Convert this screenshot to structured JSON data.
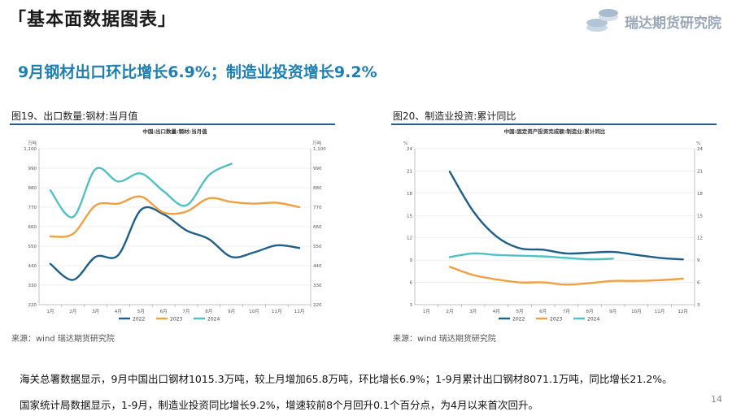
{
  "header": {
    "title": "「基本面数据图表」"
  },
  "logo": {
    "text": "瑞达期货研究院",
    "accent": "#9ab0c8"
  },
  "headline": "9月钢材出口环比增长6.9%；制造业投资增长9.2%",
  "figures": [
    {
      "caption": "图19、出口数量:钢材:当月值",
      "source": "来源：wind   瑞达期货研究院"
    },
    {
      "caption": "图20、制造业投资:累计同比",
      "source": "来源：wind   瑞达期货研究院"
    }
  ],
  "chart_data": [
    {
      "type": "line",
      "title": "中国:出口数量:钢材:当月值",
      "unit_left": "万吨",
      "unit_right": "万吨",
      "categories": [
        "1月",
        "2月",
        "3月",
        "4月",
        "5月",
        "6月",
        "7月",
        "8月",
        "9月",
        "10月",
        "11月",
        "12月"
      ],
      "ylim": [
        220,
        1100
      ],
      "yticks": [
        220,
        330,
        440,
        550,
        660,
        770,
        880,
        990,
        1100
      ],
      "ytick_labels": [
        "220",
        "330",
        "440",
        "550",
        "660",
        "770",
        "880",
        "990",
        "1,100"
      ],
      "series": [
        {
          "name": "2022",
          "color": "#1f5f8b",
          "values": [
            450,
            360,
            490,
            500,
            755,
            730,
            640,
            590,
            490,
            515,
            555,
            540
          ]
        },
        {
          "name": "2023",
          "color": "#f0a040",
          "values": [
            605,
            620,
            780,
            790,
            830,
            740,
            745,
            820,
            800,
            790,
            795,
            770
          ]
        },
        {
          "name": "2024",
          "color": "#4fc1c4",
          "values": [
            865,
            715,
            985,
            915,
            960,
            860,
            780,
            950,
            1015,
            null,
            null,
            null
          ]
        }
      ]
    },
    {
      "type": "line",
      "title": "中国:固定资产投资完成额:制造业:累计同比",
      "unit_left": "%",
      "unit_right": "%",
      "categories": [
        "1月",
        "2月",
        "3月",
        "4月",
        "5月",
        "6月",
        "7月",
        "8月",
        "9月",
        "10月",
        "11月",
        "12月"
      ],
      "ylim": [
        3,
        24
      ],
      "yticks": [
        3,
        6,
        9,
        12,
        15,
        18,
        21,
        24
      ],
      "ytick_labels": [
        "3",
        "6",
        "9",
        "12",
        "15",
        "18",
        "21",
        "24"
      ],
      "series": [
        {
          "name": "2022",
          "color": "#1f5f8b",
          "values": [
            null,
            20.9,
            15.6,
            12.2,
            10.6,
            10.4,
            9.9,
            10.0,
            10.1,
            9.7,
            9.3,
            9.1
          ]
        },
        {
          "name": "2023",
          "color": "#f0a040",
          "values": [
            null,
            8.1,
            7.0,
            6.4,
            6.0,
            6.0,
            5.7,
            5.9,
            6.2,
            6.2,
            6.3,
            6.5
          ]
        },
        {
          "name": "2024",
          "color": "#4fc1c4",
          "values": [
            null,
            9.4,
            9.9,
            9.7,
            9.6,
            9.5,
            9.3,
            9.1,
            9.2,
            null,
            null,
            null
          ]
        }
      ]
    }
  ],
  "body": {
    "para1": "海关总署数据显示，9月中国出口钢材1015.3万吨，较上月增加65.8万吨，环比增长6.9%；1-9月累计出口钢材8071.1万吨，同比增长21.2%。",
    "para2": "国家统计局数据显示，1-9月，制造业投资同比增长9.2%，增速较前8个月回升0.1个百分点，为4月以来首次回升。"
  },
  "page_number": "14"
}
